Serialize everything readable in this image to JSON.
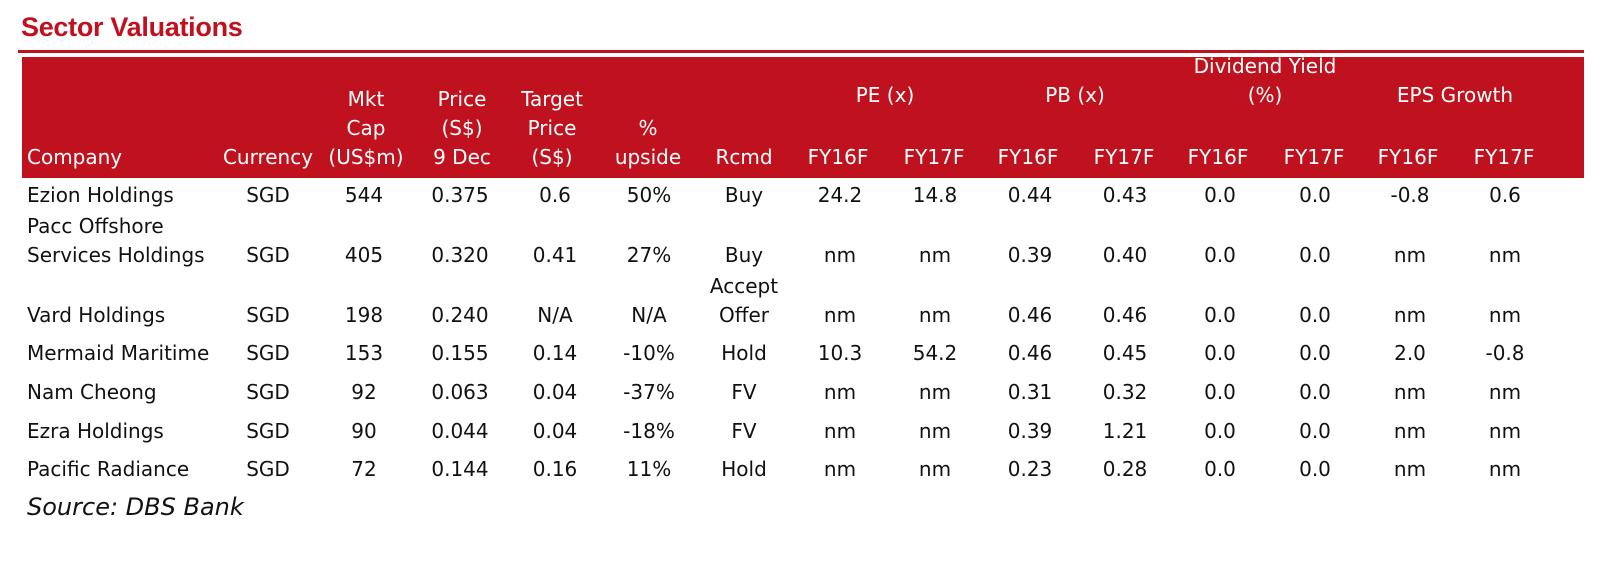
{
  "title": "Sector Valuations",
  "header": {
    "company": "Company",
    "currency": "Currency",
    "mkt_cap": "Mkt\nCap\n(US$m)",
    "price": "Price\n(S$)\n9 Dec",
    "target_price": "Target\nPrice\n(S$)",
    "pct_upside": "%\nupside",
    "rcmd": "Rcmd",
    "pe": "PE (x)",
    "pb": "PB (x)",
    "dividend_yield": "Dividend Yield\n(%)",
    "eps_growth": "EPS Growth",
    "sub": [
      "FY16F",
      "FY17F",
      "FY16F",
      "FY17F",
      "FY16F",
      "FY17F",
      "FY16F",
      "FY17F"
    ]
  },
  "rows": [
    {
      "company": "Ezion Holdings",
      "currency": "SGD",
      "mkt_cap": "544",
      "price": "0.375",
      "target": "0.6",
      "upside": "50%",
      "rcmd": "Buy",
      "values": [
        "24.2",
        "14.8",
        "0.44",
        "0.43",
        "0.0",
        "0.0",
        "-0.8",
        "0.6"
      ]
    },
    {
      "company": "Pacc Offshore\nServices Holdings",
      "currency": "SGD",
      "mkt_cap": "405",
      "price": "0.320",
      "target": "0.41",
      "upside": "27%",
      "rcmd": "Buy",
      "values": [
        "nm",
        "nm",
        "0.39",
        "0.40",
        "0.0",
        "0.0",
        "nm",
        "nm"
      ]
    },
    {
      "company": "Vard Holdings",
      "currency": "SGD",
      "mkt_cap": "198",
      "price": "0.240",
      "target": "N/A",
      "upside": "N/A",
      "rcmd": "Accept\nOffer",
      "values": [
        "nm",
        "nm",
        "0.46",
        "0.46",
        "0.0",
        "0.0",
        "nm",
        "nm"
      ]
    },
    {
      "company": "Mermaid Maritime",
      "currency": "SGD",
      "mkt_cap": "153",
      "price": "0.155",
      "target": "0.14",
      "upside": "-10%",
      "rcmd": "Hold",
      "values": [
        "10.3",
        "54.2",
        "0.46",
        "0.45",
        "0.0",
        "0.0",
        "2.0",
        "-0.8"
      ]
    },
    {
      "company": "Nam Cheong",
      "currency": "SGD",
      "mkt_cap": "92",
      "price": "0.063",
      "target": "0.04",
      "upside": "-37%",
      "rcmd": "FV",
      "values": [
        "nm",
        "nm",
        "0.31",
        "0.32",
        "0.0",
        "0.0",
        "nm",
        "nm"
      ]
    },
    {
      "company": "Ezra Holdings",
      "currency": "SGD",
      "mkt_cap": "90",
      "price": "0.044",
      "target": "0.04",
      "upside": "-18%",
      "rcmd": "FV",
      "values": [
        "nm",
        "nm",
        "0.39",
        "1.21",
        "0.0",
        "0.0",
        "nm",
        "nm"
      ]
    },
    {
      "company": "Pacific Radiance",
      "currency": "SGD",
      "mkt_cap": "72",
      "price": "0.144",
      "target": "0.16",
      "upside": "11%",
      "rcmd": "Hold",
      "values": [
        "nm",
        "nm",
        "0.23",
        "0.28",
        "0.0",
        "0.0",
        "nm",
        "nm"
      ]
    }
  ],
  "source": "Source: DBS Bank",
  "colors": {
    "accent": "#c0121e",
    "header_text": "#ffffff",
    "body_text": "#111111"
  }
}
